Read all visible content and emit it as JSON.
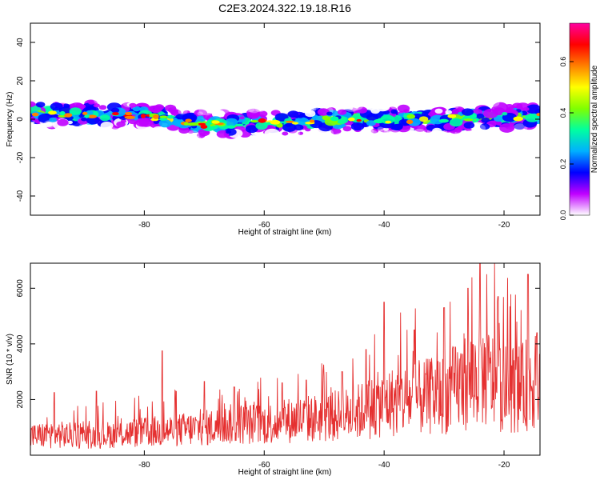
{
  "title": "C2E3.2024.322.19.18.R16",
  "chart_data": [
    {
      "type": "heatmap",
      "name": "spectrogram",
      "xlabel": "Height of straight line (km)",
      "ylabel": "Frequency (Hz)",
      "xlim": [
        -99,
        -14
      ],
      "ylim": [
        -50,
        50
      ],
      "xticks": [
        -80,
        -60,
        -40,
        -20
      ],
      "yticks": [
        -40,
        -20,
        0,
        20,
        40
      ],
      "band_center_hz": [
        [
          -98,
          3
        ],
        [
          -80,
          2
        ],
        [
          -70,
          -3
        ],
        [
          -60,
          -2
        ],
        [
          -45,
          0
        ],
        [
          -30,
          0
        ],
        [
          -20,
          1
        ],
        [
          -14,
          1
        ]
      ],
      "band_halfwidth_hz": 7,
      "colorbar": {
        "label": "Normalized spectral amplitude",
        "range": [
          0,
          0.75
        ],
        "ticks": [
          "0.0",
          "0.2",
          "0.4",
          "0.6"
        ],
        "tick_values": [
          0.0,
          0.2,
          0.4,
          0.6
        ],
        "colors": [
          "#ffffff",
          "#c000ff",
          "#0000ff",
          "#00b0ff",
          "#00ffa0",
          "#80ff00",
          "#ffff00",
          "#ff8000",
          "#ff0000",
          "#ff00a0"
        ]
      }
    },
    {
      "type": "line",
      "name": "snr",
      "xlabel": "Height of straight line (km)",
      "ylabel": "SNR (10 * v/v)",
      "xlim": [
        -99,
        -14
      ],
      "ylim": [
        0,
        6900
      ],
      "xticks": [
        -80,
        -60,
        -40,
        -20
      ],
      "yticks": [
        2000,
        4000,
        6000
      ],
      "color": "#e53030",
      "envelope_x": [
        -99,
        -95,
        -90,
        -85,
        -80,
        -75,
        -70,
        -65,
        -60,
        -55,
        -50,
        -45,
        -40,
        -35,
        -30,
        -26,
        -24,
        -22,
        -20,
        -17,
        -15.5,
        -14
      ],
      "envelope_y": [
        900,
        1000,
        900,
        1000,
        1100,
        1200,
        1300,
        1500,
        1500,
        1700,
        1800,
        2000,
        2500,
        2700,
        2900,
        3600,
        3900,
        3600,
        3200,
        3200,
        3600,
        3300
      ],
      "peaks": [
        [
          -95,
          2250
        ],
        [
          -88,
          2300
        ],
        [
          -77,
          3750
        ],
        [
          -70,
          2650
        ],
        [
          -65,
          2450
        ],
        [
          -57,
          2600
        ],
        [
          -53,
          2700
        ],
        [
          -47,
          3000
        ],
        [
          -43,
          3800
        ],
        [
          -40,
          5500
        ],
        [
          -35,
          4500
        ],
        [
          -30,
          5300
        ],
        [
          -26,
          6000
        ],
        [
          -24,
          6900
        ],
        [
          -21,
          5700
        ],
        [
          -16,
          6500
        ],
        [
          -14.5,
          4400
        ]
      ]
    }
  ]
}
